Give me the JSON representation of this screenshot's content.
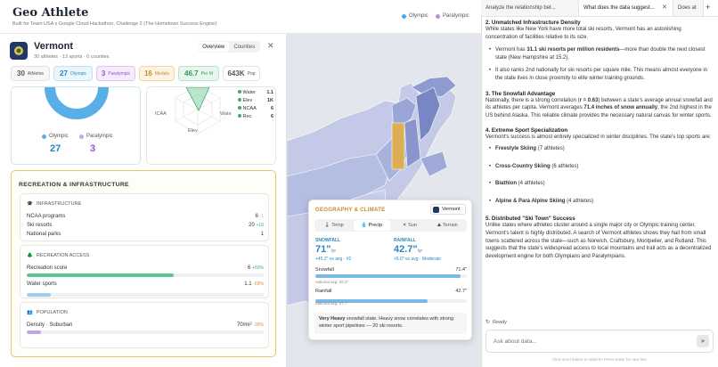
{
  "header": {
    "title": "Geo Athlete",
    "subtitle": "Built for Team USA x Google Cloud Hackathon, Challenge 2 (The Hometown Success Engine)",
    "legend": [
      {
        "label": "Olympic",
        "color": "#4aa8e8"
      },
      {
        "label": "Paralympic",
        "color": "#b98ee0"
      }
    ]
  },
  "state": {
    "name": "Vermont",
    "summary": "30 athletes · 13 sports · 0 counties",
    "view_tabs": [
      "Overview",
      "Counties"
    ],
    "stats": [
      {
        "value": "30",
        "label": "Athletes"
      },
      {
        "value": "27",
        "label": "Olympic"
      },
      {
        "value": "3",
        "label": "Paralympic"
      },
      {
        "value": "16",
        "label": "Medals"
      },
      {
        "value": "46.7",
        "label": "Per M"
      },
      {
        "value": "643K",
        "label": "Pop"
      }
    ]
  },
  "donut": {
    "olympic_label": "Olympic",
    "olympic_value": "27",
    "paralympic_label": "Paralympic",
    "paralympic_value": "3",
    "olympic_share": 0.9
  },
  "radar": {
    "labels": [
      "ICAA",
      "Elev",
      "Wate"
    ],
    "legend": [
      {
        "name": "Water",
        "value": "1.1"
      },
      {
        "name": "Elev",
        "value": "1K"
      },
      {
        "name": "NCAA",
        "value": "6"
      },
      {
        "name": "Rec",
        "value": "6"
      }
    ]
  },
  "recreation": {
    "title": "RECREATION & INFRASTRUCTURE",
    "infrastructure": {
      "title": "INFRASTRUCTURE",
      "rows": [
        {
          "label": "NCAA programs",
          "value": "6",
          "delta": "-1"
        },
        {
          "label": "Ski resorts",
          "value": "20",
          "delta": "+16"
        },
        {
          "label": "National parks",
          "value": "1",
          "delta": ""
        }
      ]
    },
    "access": {
      "title": "RECREATION ACCESS",
      "rows": [
        {
          "label": "Recreation score",
          "value": "6",
          "delta": "+50%",
          "fill": 0.62,
          "color": "#5cc492"
        },
        {
          "label": "Water sports",
          "value": "1.1",
          "delta": "-69%",
          "fill": 0.1,
          "color": "#9fd0ee"
        }
      ]
    },
    "population": {
      "title": "POPULATION",
      "label": "Density · Suburban",
      "value": "70/mi²",
      "delta": "-36%",
      "fill": 0.06
    }
  },
  "geo": {
    "title": "GEOGRAPHY & CLIMATE",
    "badge": "Vermont",
    "tabs": [
      "Temp",
      "Precip",
      "Sun",
      "Terrain"
    ],
    "active_tab": "Precip",
    "snowfall": {
      "label": "SNOWFALL",
      "value": "71\"",
      "unit": "/yr",
      "delta": "+45.2\" vs avg · #2",
      "fill": 0.96,
      "bar_value": "71.4\"",
      "note": "national avg: 26.2\""
    },
    "rainfall": {
      "label": "RAINFALL",
      "value": "42.7\"",
      "unit": "/yr",
      "delta": "+5.0\" vs avg · Moderate",
      "fill": 0.74,
      "bar_value": "42.7\"",
      "note": "national avg: 37.7\""
    },
    "bar_labels": {
      "snow": "Snowfall",
      "rain": "Rainfall"
    },
    "callout_bold": "Very Heavy",
    "callout": " snowfall state. Heavy snow correlates with strong winter sport pipelines — 20 ski resorts."
  },
  "chat": {
    "tabs": [
      "Analyze the relationship bet...",
      "What does the data suggest...",
      "Does at"
    ],
    "heading2": "2. Unmatched Infrastructure Density",
    "p2": "While states like New York have more total ski resorts, Vermont has an astonishing concentration of facilities relative to its size.",
    "li2a_pre": "Vermont has ",
    "li2a_bold": "31.1 ski resorts per million residents",
    "li2a_post": "—more than double the next closest state (New Hampshire at 15.2).",
    "li2b": "It also ranks 2nd nationally for ski resorts per square mile. This means almost everyone in the state lives in close proximity to elite winter training grounds.",
    "heading3": "3. The Snowfall Advantage",
    "p3_pre": "Nationally, there is a strong correlation (",
    "p3_b1": "r = 0.63",
    "p3_mid": ") between a state's average annual snowfall and its athletes per capita. Vermont averages ",
    "p3_b2": "71.4 inches of snow annually",
    "p3_post": ", the 2nd highest in the US behind Alaska. This reliable climate provides the necessary natural canvas for winter sports.",
    "heading4": "4. Extreme Sport Specialization",
    "p4": "Vermont's success is almost entirely specialized in winter disciplines. The state's top sports are:",
    "sports": [
      {
        "name": "Freestyle Skiing",
        "count": " (7 athletes)"
      },
      {
        "name": "Cross-Country Skiing",
        "count": " (6 athletes)"
      },
      {
        "name": "Biathlon",
        "count": " (4 athletes)"
      },
      {
        "name": "Alpine & Para Alpine Skiing",
        "count": " (4 athletes)"
      }
    ],
    "heading5": "5. Distributed \"Ski Town\" Success",
    "p5": "Unlike states where athletes cluster around a single major city or Olympic training center, Vermont's talent is highly distributed. A search of Vermont athletes shows they hail from small towns scattered across the state—such as Norwich, Craftsbury, Montpelier, and Rutland. This suggests that the state's widespread access to local mountains and trail acts as a decentralized development engine for both Olympians and Paralympians.",
    "status": "Ready",
    "input_placeholder": "Ask about data...",
    "hint": "Click send button to submit • Press Enter for new line"
  }
}
